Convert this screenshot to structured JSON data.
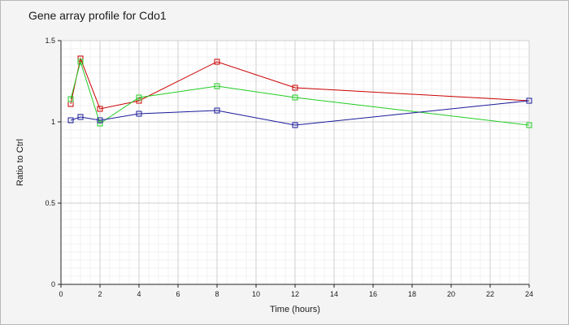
{
  "chart_data": {
    "type": "line",
    "title": "Gene array profile for Cdo1",
    "xlabel": "Time (hours)",
    "ylabel": "Ratio to Ctrl",
    "xlim": [
      0,
      24
    ],
    "ylim": [
      0,
      1.5
    ],
    "xticks": [
      0,
      2,
      4,
      6,
      8,
      10,
      12,
      14,
      16,
      18,
      20,
      22,
      24
    ],
    "yticks": [
      0,
      0.5,
      1,
      1.5
    ],
    "ytick_labels": [
      "0",
      "0.5",
      "1",
      "1.5"
    ],
    "grid": true,
    "legend": "none",
    "series": [
      {
        "color": "#cc0000",
        "x": [
          0.5,
          1,
          2,
          4,
          8,
          12,
          24
        ],
        "y": [
          1.11,
          1.39,
          1.08,
          1.13,
          1.37,
          1.21,
          1.13
        ]
      },
      {
        "color": "#22cc22",
        "x": [
          0.5,
          1,
          2,
          4,
          8,
          12,
          24
        ],
        "y": [
          1.14,
          1.37,
          0.99,
          1.15,
          1.22,
          1.15,
          0.98
        ]
      },
      {
        "color": "#1a1a9a",
        "x": [
          0.5,
          1,
          2,
          4,
          8,
          12,
          24
        ],
        "y": [
          1.01,
          1.03,
          1.01,
          1.05,
          1.07,
          0.98,
          1.13
        ]
      }
    ]
  }
}
